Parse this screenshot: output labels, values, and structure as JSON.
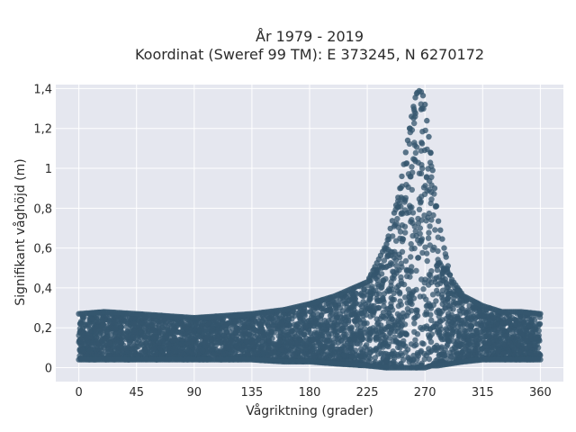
{
  "chart_data": {
    "type": "scatter",
    "title_line1": "År 1979 - 2019",
    "title_line2": "Koordinat (Sweref 99 TM): E 373245, N 6270172",
    "xlabel": "Vågriktning (grader)",
    "ylabel": "Signifikant våghöjd (m)",
    "xlim": [
      -18,
      378
    ],
    "ylim": [
      -0.07,
      1.42
    ],
    "xticks": [
      0,
      45,
      90,
      135,
      180,
      225,
      270,
      315,
      360
    ],
    "xtick_labels": [
      "0",
      "45",
      "90",
      "135",
      "180",
      "225",
      "270",
      "315",
      "360"
    ],
    "yticks": [
      0,
      0.2,
      0.4,
      0.6,
      0.8,
      1.0,
      1.2,
      1.4
    ],
    "ytick_labels": [
      "0",
      "0,2",
      "0,4",
      "0,6",
      "0,8",
      "1",
      "1,2",
      "1,4"
    ],
    "grid": true,
    "point_color": "#34566e",
    "plot_background": "#e5e7ef",
    "envelope": {
      "direction_deg": [
        0,
        20,
        45,
        90,
        135,
        160,
        180,
        200,
        225,
        240,
        250,
        255,
        260,
        263,
        265,
        268,
        270,
        275,
        280,
        290,
        300,
        315,
        330,
        345,
        360
      ],
      "upper_wave_height_m": [
        0.27,
        0.28,
        0.27,
        0.25,
        0.27,
        0.29,
        0.32,
        0.36,
        0.43,
        0.62,
        0.88,
        1.08,
        1.28,
        1.37,
        1.39,
        1.38,
        1.32,
        1.05,
        0.75,
        0.45,
        0.36,
        0.31,
        0.28,
        0.28,
        0.27
      ],
      "lower_wave_height_m": [
        0.04,
        0.04,
        0.04,
        0.04,
        0.04,
        0.03,
        0.03,
        0.02,
        0.01,
        0.0,
        0.0,
        0.0,
        0.0,
        0.0,
        0.0,
        0.0,
        0.0,
        0.01,
        0.01,
        0.02,
        0.03,
        0.04,
        0.04,
        0.04,
        0.04
      ]
    }
  }
}
